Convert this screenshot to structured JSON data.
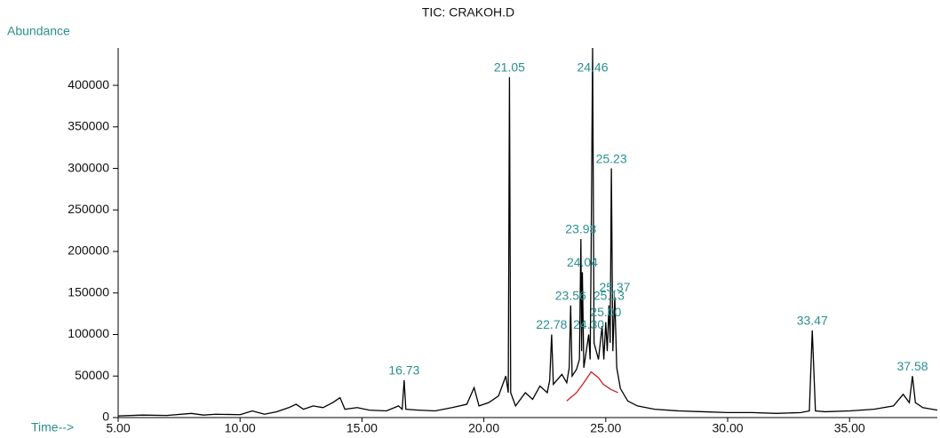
{
  "chart_data": {
    "type": "line",
    "title": "TIC: CRAKOH.D",
    "ylabel": "Abundance",
    "xlabel": "Time-->",
    "xlim": [
      5,
      38.6
    ],
    "ylim": [
      0,
      445000
    ],
    "xticks": [
      {
        "value": 5,
        "label": "5.00"
      },
      {
        "value": 10,
        "label": "10.00"
      },
      {
        "value": 15,
        "label": "15.00"
      },
      {
        "value": 20,
        "label": "20.00"
      },
      {
        "value": 25,
        "label": "25.00"
      },
      {
        "value": 30,
        "label": "30.00"
      },
      {
        "value": 35,
        "label": "35.00"
      }
    ],
    "yticks": [
      0,
      50000,
      100000,
      150000,
      200000,
      250000,
      300000,
      350000,
      400000
    ],
    "series": [
      {
        "color": "#000000",
        "x": [
          5.0,
          6,
          7,
          8,
          8.5,
          9,
          10,
          10.5,
          11,
          11.5,
          12,
          12.3,
          12.6,
          13,
          13.4,
          13.8,
          14.1,
          14.3,
          14.8,
          15.3,
          16,
          16.5,
          16.65,
          16.73,
          16.8,
          17.3,
          18,
          18.7,
          19.3,
          19.6,
          19.8,
          20.2,
          20.6,
          20.9,
          21.0,
          21.05,
          21.1,
          21.3,
          21.7,
          22.0,
          22.3,
          22.6,
          22.7,
          22.78,
          22.85,
          23.2,
          23.4,
          23.5,
          23.56,
          23.62,
          23.8,
          23.92,
          23.98,
          24.01,
          24.04,
          24.1,
          24.25,
          24.3,
          24.36,
          24.4,
          24.46,
          24.52,
          24.7,
          24.85,
          24.92,
          25.0,
          25.06,
          25.13,
          25.18,
          25.23,
          25.29,
          25.37,
          25.45,
          25.6,
          25.9,
          26.3,
          27,
          28,
          29,
          30,
          31,
          32,
          33,
          33.35,
          33.47,
          33.6,
          34,
          35,
          36,
          36.8,
          37.2,
          37.45,
          37.58,
          37.7,
          38,
          38.6
        ],
        "values": [
          2000,
          3000,
          2500,
          5000,
          3000,
          4000,
          3500,
          8000,
          4000,
          7000,
          12000,
          16000,
          10000,
          14000,
          12000,
          18000,
          24000,
          10000,
          12000,
          9000,
          8000,
          14000,
          10000,
          45000,
          10000,
          9000,
          8000,
          12000,
          16000,
          36000,
          14000,
          18000,
          26000,
          50000,
          30000,
          410000,
          30000,
          14000,
          30000,
          22000,
          38000,
          30000,
          45000,
          100000,
          40000,
          52000,
          42000,
          60000,
          135000,
          50000,
          58000,
          70000,
          215000,
          80000,
          175000,
          60000,
          90000,
          100000,
          70000,
          200000,
          445000,
          90000,
          70000,
          110000,
          70000,
          115000,
          80000,
          135000,
          90000,
          300000,
          80000,
          145000,
          60000,
          35000,
          20000,
          14000,
          10000,
          8000,
          7000,
          6000,
          6000,
          5000,
          6000,
          8000,
          105000,
          8000,
          7000,
          8000,
          10000,
          14000,
          28000,
          18000,
          50000,
          18000,
          12000,
          9000
        ]
      },
      {
        "color": "#cc2020",
        "x": [
          23.4,
          23.8,
          24.1,
          24.4,
          24.7,
          24.9,
          25.2,
          25.5
        ],
        "values": [
          20000,
          30000,
          42000,
          55000,
          48000,
          40000,
          34000,
          30000
        ]
      }
    ],
    "annotations": [
      {
        "label": "16.73",
        "x": 16.73,
        "y": 45000
      },
      {
        "label": "21.05",
        "x": 21.05,
        "y": 410000
      },
      {
        "label": "22.78",
        "x": 22.78,
        "y": 100000
      },
      {
        "label": "23.56",
        "x": 23.56,
        "y": 135000
      },
      {
        "label": "23.98",
        "x": 23.98,
        "y": 215000
      },
      {
        "label": "24.04",
        "x": 24.04,
        "y": 175000
      },
      {
        "label": "24.30",
        "x": 24.3,
        "y": 100000
      },
      {
        "label": "24.46",
        "x": 24.46,
        "y": 410000
      },
      {
        "label": "25.00",
        "x": 25.0,
        "y": 115000
      },
      {
        "label": "25.13",
        "x": 25.13,
        "y": 135000
      },
      {
        "label": "25.23",
        "x": 25.23,
        "y": 300000
      },
      {
        "label": "25.37",
        "x": 25.37,
        "y": 145000
      },
      {
        "label": "33.47",
        "x": 33.47,
        "y": 105000
      },
      {
        "label": "37.58",
        "x": 37.58,
        "y": 50000
      }
    ]
  }
}
